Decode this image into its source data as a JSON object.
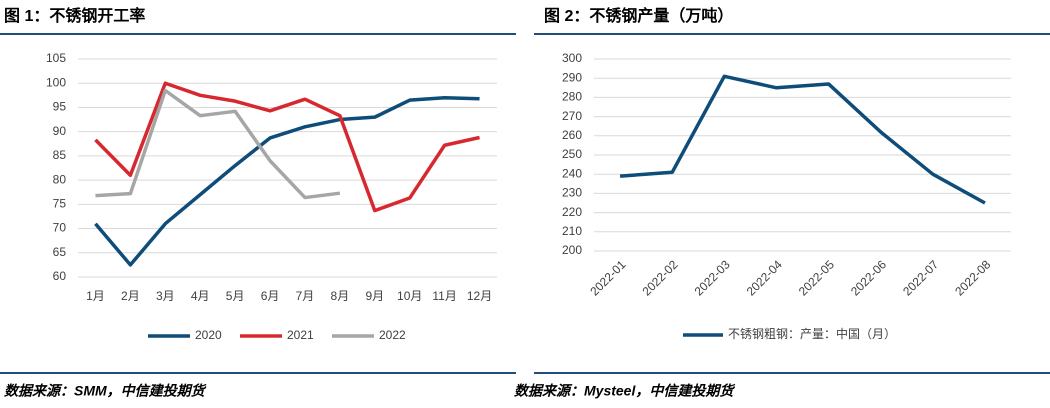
{
  "chart_data": [
    {
      "type": "line",
      "title": "图 1：不锈钢开工率",
      "source": "数据来源：SMM，中信建投期货",
      "categories": [
        "1月",
        "2月",
        "3月",
        "4月",
        "5月",
        "6月",
        "7月",
        "8月",
        "9月",
        "10月",
        "11月",
        "12月"
      ],
      "series": [
        {
          "name": "2020",
          "color": "#0e4c7a",
          "values": [
            71,
            62.5,
            71,
            77,
            83,
            88.7,
            91,
            92.5,
            93,
            96.5,
            97,
            96.8
          ]
        },
        {
          "name": "2021",
          "color": "#d7282f",
          "values": [
            88.3,
            81,
            100,
            97.5,
            96.3,
            94.3,
            96.7,
            93.3,
            73.7,
            76.3,
            87.2,
            88.8
          ]
        },
        {
          "name": "2022",
          "color": "#a6a6a6",
          "values": [
            76.8,
            77.2,
            98.5,
            93.3,
            94.2,
            84,
            76.4,
            77.3,
            null,
            null,
            null,
            null
          ]
        }
      ],
      "ylim": [
        60,
        105
      ],
      "yticks": [
        60,
        65,
        70,
        75,
        80,
        85,
        90,
        95,
        100,
        105
      ],
      "grid": true,
      "legend": "bottom"
    },
    {
      "type": "line",
      "title": "图 2：不锈钢产量（万吨）",
      "source": "数据来源：Mysteel，中信建投期货",
      "categories": [
        "2022-01",
        "2022-02",
        "2022-03",
        "2022-04",
        "2022-05",
        "2022-06",
        "2022-07",
        "2022-08"
      ],
      "series": [
        {
          "name": "不锈钢粗钢：产量：中国（月）",
          "color": "#0e4c7a",
          "values": [
            239,
            241,
            291,
            285,
            287,
            262,
            240,
            225
          ]
        }
      ],
      "ylim": [
        200,
        300
      ],
      "yticks": [
        200,
        210,
        220,
        230,
        240,
        250,
        260,
        270,
        280,
        290,
        300
      ],
      "grid": true,
      "legend": "bottom",
      "rotated_labels": true
    }
  ]
}
